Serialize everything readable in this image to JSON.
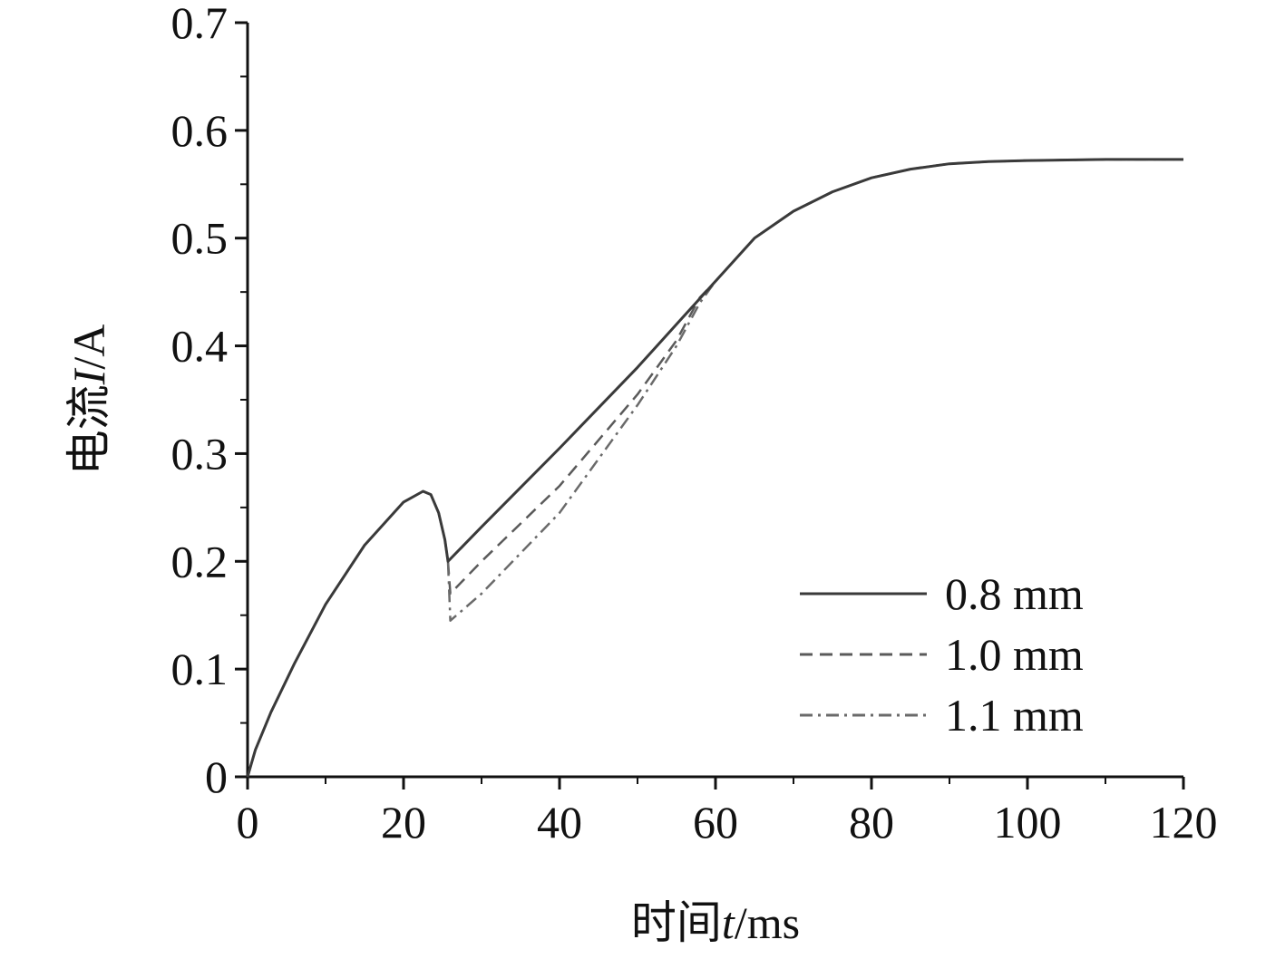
{
  "chart_data": {
    "type": "line",
    "title": "",
    "xlabel": {
      "prefix": "时间",
      "var": "t",
      "unit": "/ms"
    },
    "ylabel": {
      "prefix": "电流",
      "var": "I",
      "unit": "/A"
    },
    "xlim": [
      0,
      120
    ],
    "ylim": [
      0,
      0.7
    ],
    "xticks": [
      0,
      20,
      40,
      60,
      80,
      100,
      120
    ],
    "xtick_labels": [
      "0",
      "20",
      "40",
      "60",
      "80",
      "100",
      "120"
    ],
    "yticks": [
      0,
      0.1,
      0.2,
      0.3,
      0.4,
      0.5,
      0.6,
      0.7
    ],
    "ytick_labels": [
      "0",
      "0.1",
      "0.2",
      "0.3",
      "0.4",
      "0.5",
      "0.6",
      "0.7"
    ],
    "grid": false,
    "legend_position": "bottom-right",
    "series": [
      {
        "name": "0.8 mm",
        "style": "solid",
        "color": "#3a3a3a",
        "x": [
          0,
          1,
          3,
          6,
          10,
          15,
          20,
          22.5,
          23.5,
          24.5,
          25.3,
          25.7,
          30,
          40,
          50,
          55,
          60,
          65,
          70,
          75,
          80,
          85,
          90,
          95,
          100,
          110,
          120
        ],
        "y": [
          0,
          0.025,
          0.06,
          0.105,
          0.16,
          0.215,
          0.255,
          0.265,
          0.262,
          0.245,
          0.22,
          0.2,
          0.232,
          0.305,
          0.38,
          0.42,
          0.46,
          0.5,
          0.525,
          0.543,
          0.556,
          0.564,
          0.569,
          0.571,
          0.572,
          0.573,
          0.573
        ]
      },
      {
        "name": "1.0 mm",
        "style": "dashed",
        "color": "#5a5a5a",
        "x": [
          0,
          1,
          3,
          6,
          10,
          15,
          20,
          22.5,
          23.5,
          24.5,
          25.3,
          25.7,
          26,
          30,
          40,
          50,
          55,
          58,
          60,
          65,
          70,
          75,
          80,
          85,
          90,
          95,
          100,
          110,
          120
        ],
        "y": [
          0,
          0.025,
          0.06,
          0.105,
          0.16,
          0.215,
          0.255,
          0.265,
          0.262,
          0.245,
          0.22,
          0.2,
          0.17,
          0.2,
          0.27,
          0.355,
          0.405,
          0.445,
          0.46,
          0.5,
          0.525,
          0.543,
          0.556,
          0.564,
          0.569,
          0.571,
          0.572,
          0.573,
          0.573
        ]
      },
      {
        "name": "1.1 mm",
        "style": "dashdot",
        "color": "#6a6a6a",
        "x": [
          0,
          1,
          3,
          6,
          10,
          15,
          20,
          22.5,
          23.5,
          24.5,
          25.3,
          25.7,
          26,
          30,
          40,
          50,
          55,
          58,
          60,
          65,
          70,
          75,
          80,
          85,
          90,
          95,
          100,
          110,
          120
        ],
        "y": [
          0,
          0.025,
          0.06,
          0.105,
          0.16,
          0.215,
          0.255,
          0.265,
          0.262,
          0.245,
          0.22,
          0.2,
          0.145,
          0.17,
          0.245,
          0.345,
          0.4,
          0.44,
          0.46,
          0.5,
          0.525,
          0.543,
          0.556,
          0.564,
          0.569,
          0.571,
          0.572,
          0.573,
          0.573
        ]
      }
    ]
  }
}
